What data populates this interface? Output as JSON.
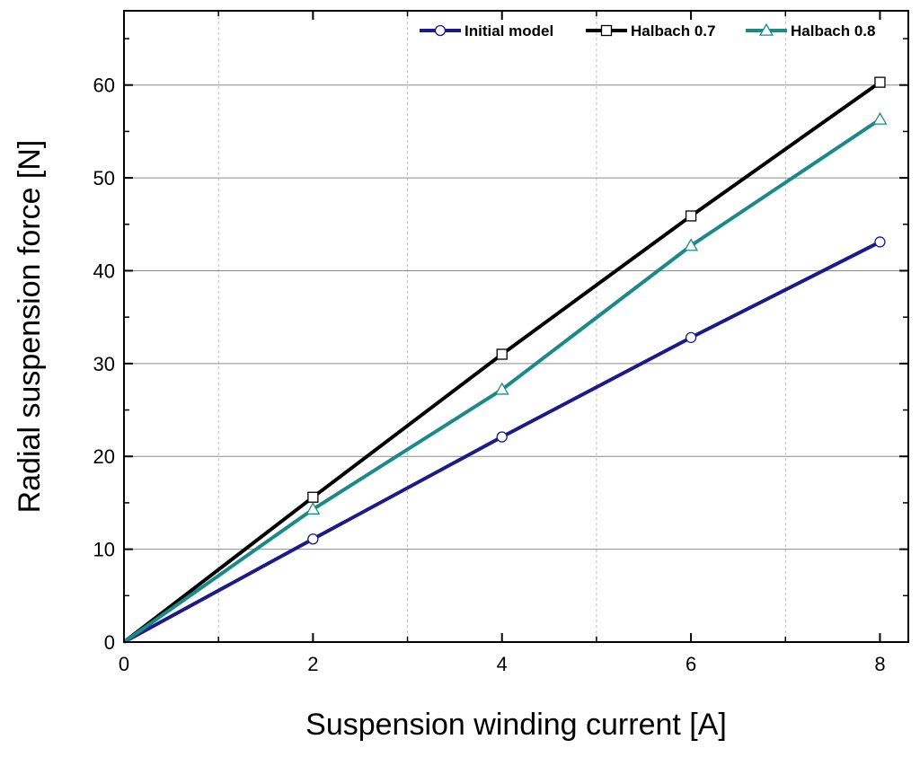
{
  "chart_data": {
    "type": "line",
    "title": "",
    "xlabel": "Suspension winding current [A]",
    "ylabel": "Radial suspension force [N]",
    "xlim": [
      0,
      8.3
    ],
    "ylim": [
      0,
      68
    ],
    "x_ticks": [
      0,
      2,
      4,
      6,
      8
    ],
    "y_ticks": [
      0,
      10,
      20,
      30,
      40,
      50,
      60
    ],
    "x": [
      0,
      2,
      4,
      6,
      8
    ],
    "grid": {
      "x_minor_vertical": true,
      "y_major_horizontal": true
    },
    "legend_position": "top-right",
    "series": [
      {
        "name": "Initial model",
        "color": "#1a1a8c",
        "marker": "circle",
        "values": [
          0,
          11.1,
          22.1,
          32.8,
          43.1
        ]
      },
      {
        "name": "Halbach 0.7",
        "color": "#000000",
        "marker": "square",
        "values": [
          0,
          15.6,
          31.0,
          45.9,
          60.3
        ]
      },
      {
        "name": "Halbach 0.8",
        "color": "#1a8a86",
        "marker": "triangle",
        "values": [
          0,
          14.3,
          27.2,
          42.7,
          56.3
        ]
      }
    ]
  }
}
